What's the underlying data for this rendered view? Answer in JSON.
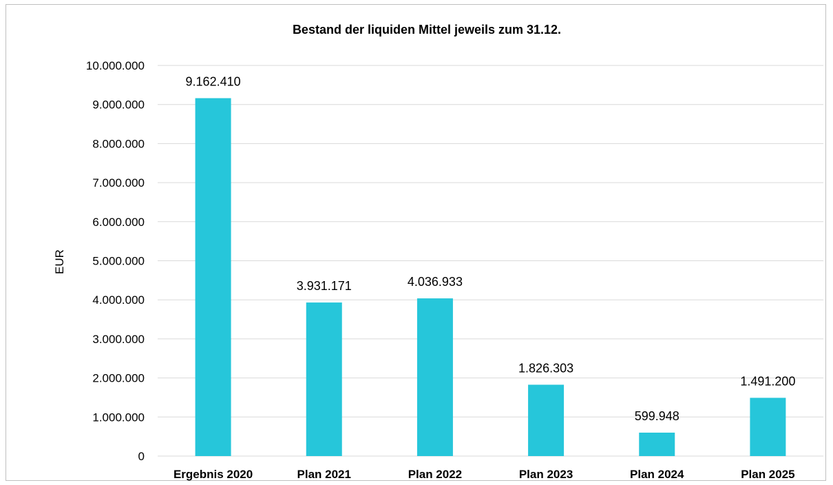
{
  "chart_data": {
    "type": "bar",
    "title": "Bestand der liquiden Mittel jeweils zum 31.12.",
    "xlabel": "",
    "ylabel": "EUR",
    "ylim": [
      0,
      10000000
    ],
    "yticks": [
      0,
      1000000,
      2000000,
      3000000,
      4000000,
      5000000,
      6000000,
      7000000,
      8000000,
      9000000,
      10000000
    ],
    "ytick_labels": [
      "0",
      "1.000.000",
      "2.000.000",
      "3.000.000",
      "4.000.000",
      "5.000.000",
      "6.000.000",
      "7.000.000",
      "8.000.000",
      "9.000.000",
      "10.000.000"
    ],
    "categories": [
      "Ergebnis 2020",
      "Plan 2021",
      "Plan 2022",
      "Plan 2023",
      "Plan 2024",
      "Plan 2025"
    ],
    "values": [
      9162410,
      3931171,
      4036933,
      1826303,
      599948,
      1491200
    ],
    "data_labels": [
      "9.162.410",
      "3.931.171",
      "4.036.933",
      "1.826.303",
      "599.948",
      "1.491.200"
    ],
    "bar_color": "#26c6da",
    "grid": true,
    "legend": "none"
  }
}
